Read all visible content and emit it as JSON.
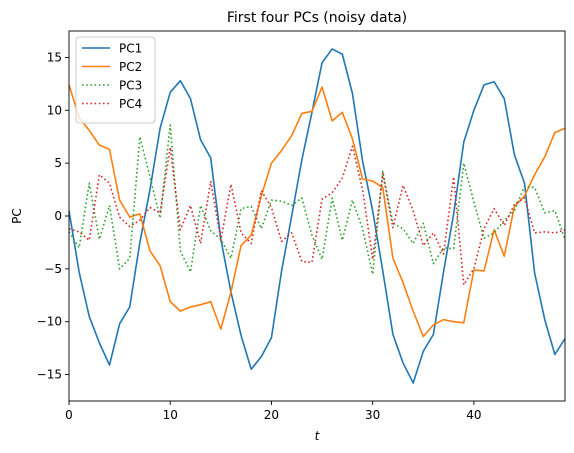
{
  "chart_data": {
    "type": "line",
    "title": "First four PCs (noisy data)",
    "xlabel": "t",
    "ylabel": "PC",
    "xlim": [
      0,
      49
    ],
    "ylim": [
      -17.5,
      17.5
    ],
    "xticks": [
      0,
      10,
      20,
      30,
      40
    ],
    "yticks": [
      -15,
      -10,
      -5,
      0,
      5,
      10,
      15
    ],
    "grid": false,
    "legend": "top-left",
    "x": [
      0,
      1,
      2,
      3,
      4,
      5,
      6,
      7,
      8,
      9,
      10,
      11,
      12,
      13,
      14,
      15,
      16,
      17,
      18,
      19,
      20,
      21,
      22,
      23,
      24,
      25,
      26,
      27,
      28,
      29,
      30,
      31,
      32,
      33,
      34,
      35,
      36,
      37,
      38,
      39,
      40,
      41,
      42,
      43,
      44,
      45,
      46,
      47,
      48,
      49
    ],
    "series": [
      {
        "name": "PC1",
        "color": "#1f77b4",
        "style": "solid",
        "values": [
          0.5,
          -5.3,
          -9.5,
          -12.0,
          -14.1,
          -10.2,
          -8.6,
          -2.5,
          2.5,
          8.3,
          11.7,
          12.8,
          11.1,
          7.2,
          5.5,
          -2.2,
          -7.2,
          -11.3,
          -14.5,
          -13.3,
          -11.5,
          -5.2,
          0.0,
          5.3,
          9.8,
          14.5,
          15.8,
          15.3,
          11.6,
          5.2,
          0.5,
          -5.2,
          -11.2,
          -13.9,
          -15.8,
          -12.8,
          -11.2,
          -5.3,
          0.2,
          7.0,
          10.0,
          12.4,
          12.7,
          11.1,
          5.8,
          3.1,
          -5.4,
          -9.8,
          -13.1,
          -11.6
        ]
      },
      {
        "name": "PC2",
        "color": "#ff7f0e",
        "style": "solid",
        "values": [
          12.4,
          9.3,
          8.1,
          6.7,
          6.3,
          1.5,
          -0.1,
          0.2,
          -3.3,
          -4.7,
          -8.1,
          -9.0,
          -8.6,
          -8.4,
          -8.1,
          -10.7,
          -7.2,
          -2.8,
          -1.8,
          1.9,
          5.0,
          6.2,
          7.6,
          9.7,
          9.9,
          12.2,
          9.0,
          9.8,
          7.3,
          3.5,
          3.3,
          2.7,
          -4.0,
          -6.3,
          -9.0,
          -11.4,
          -10.3,
          -9.8,
          -10.0,
          -10.1,
          -5.1,
          -5.2,
          -1.3,
          -3.8,
          0.9,
          1.9,
          3.9,
          5.6,
          7.9,
          8.3
        ]
      },
      {
        "name": "PC3",
        "color": "#2ca02c",
        "style": "dotted",
        "values": [
          -1.5,
          -3.0,
          3.1,
          -2.2,
          1.0,
          -5.0,
          -4.0,
          7.5,
          3.7,
          -0.2,
          8.6,
          -3.3,
          -5.3,
          1.0,
          -1.4,
          -2.2,
          -4.0,
          0.7,
          0.9,
          -1.2,
          1.5,
          1.4,
          1.0,
          1.7,
          -1.8,
          -4.1,
          1.7,
          -2.3,
          1.5,
          -1.2,
          -5.5,
          4.2,
          -0.7,
          -1.2,
          -2.6,
          -0.7,
          -4.5,
          -3.0,
          -3.1,
          5.0,
          1.3,
          -2.1,
          -1.6,
          -0.4,
          0.5,
          2.8,
          2.7,
          0.3,
          0.5,
          -2.2
        ]
      },
      {
        "name": "PC4",
        "color": "#d62728",
        "style": "dotted",
        "values": [
          -1.2,
          -1.5,
          -2.3,
          3.9,
          3.1,
          -0.1,
          -1.0,
          -0.4,
          0.8,
          0.3,
          6.5,
          -1.3,
          1.0,
          -2.6,
          3.3,
          -2.3,
          3.0,
          -1.6,
          -2.6,
          2.4,
          0.8,
          -2.4,
          -1.6,
          -4.3,
          -4.4,
          1.6,
          2.2,
          3.6,
          6.6,
          2.5,
          -4.1,
          4.0,
          -1.1,
          2.9,
          0.5,
          -2.8,
          -1.6,
          -3.6,
          3.7,
          -6.5,
          -5.0,
          -1.2,
          0.7,
          -0.9,
          1.1,
          1.7,
          -1.6,
          -1.5,
          -1.6,
          -1.3
        ]
      }
    ]
  }
}
